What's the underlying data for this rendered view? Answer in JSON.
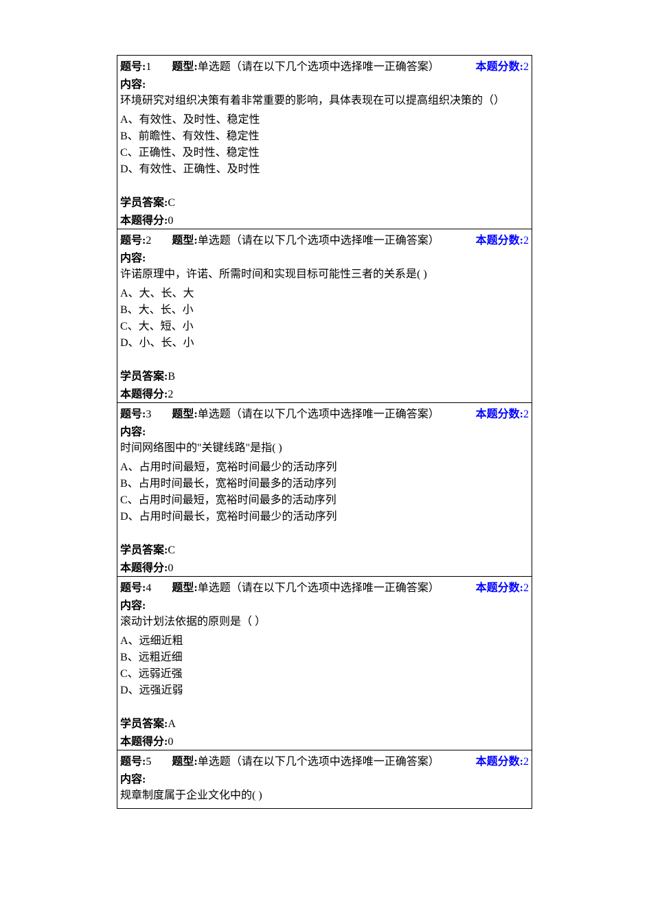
{
  "labels": {
    "question_number": "题号:",
    "question_type": "题型:",
    "question_score": "本题分数:",
    "content": "内容:",
    "student_answer": "学员答案:",
    "earned_score": "本题得分:"
  },
  "colors": {
    "score_text": "#0000ff",
    "border": "#000000",
    "background": "#ffffff",
    "text": "#000000"
  },
  "questions": [
    {
      "number": "1",
      "type": "单选题（请在以下几个选项中选择唯一正确答案）",
      "score": "2",
      "stem": "环境研究对组织决策有着非常重要的影响，具体表现在可以提高组织决策的（）",
      "options": [
        "A、有效性、及时性、稳定性",
        "B、前瞻性、有效性、稳定性",
        "C、正确性、及时性、稳定性",
        "D、有效性、正确性、及时性"
      ],
      "answer": "C",
      "earned": "0"
    },
    {
      "number": "2",
      "type": "单选题（请在以下几个选项中选择唯一正确答案）",
      "score": "2",
      "stem": "许诺原理中，许诺、所需时间和实现目标可能性三者的关系是( )",
      "options": [
        "A、大、长、大",
        "B、大、长、小",
        "C、大、短、小",
        "D、小、长、小"
      ],
      "answer": "B",
      "earned": "2"
    },
    {
      "number": "3",
      "type": "单选题（请在以下几个选项中选择唯一正确答案）",
      "score": "2",
      "stem": "时间网络图中的\"关键线路\"是指( )",
      "options": [
        "A、占用时间最短，宽裕时间最少的活动序列",
        "B、占用时间最长，宽裕时间最多的活动序列",
        "C、占用时间最短，宽裕时间最多的活动序列",
        "D、占用时间最长，宽裕时间最少的活动序列"
      ],
      "answer": "C",
      "earned": "0"
    },
    {
      "number": "4",
      "type": "单选题（请在以下几个选项中选择唯一正确答案）",
      "score": "2",
      "stem": "滚动计划法依据的原则是（ ）",
      "options": [
        "A、远细近粗",
        "B、远粗近细",
        "C、远弱近强",
        "D、远强近弱"
      ],
      "answer": "A",
      "earned": "0"
    },
    {
      "number": "5",
      "type": "单选题（请在以下几个选项中选择唯一正确答案）",
      "score": "2",
      "stem": "规章制度属于企业文化中的( )",
      "options": [],
      "answer": null,
      "earned": null
    }
  ]
}
